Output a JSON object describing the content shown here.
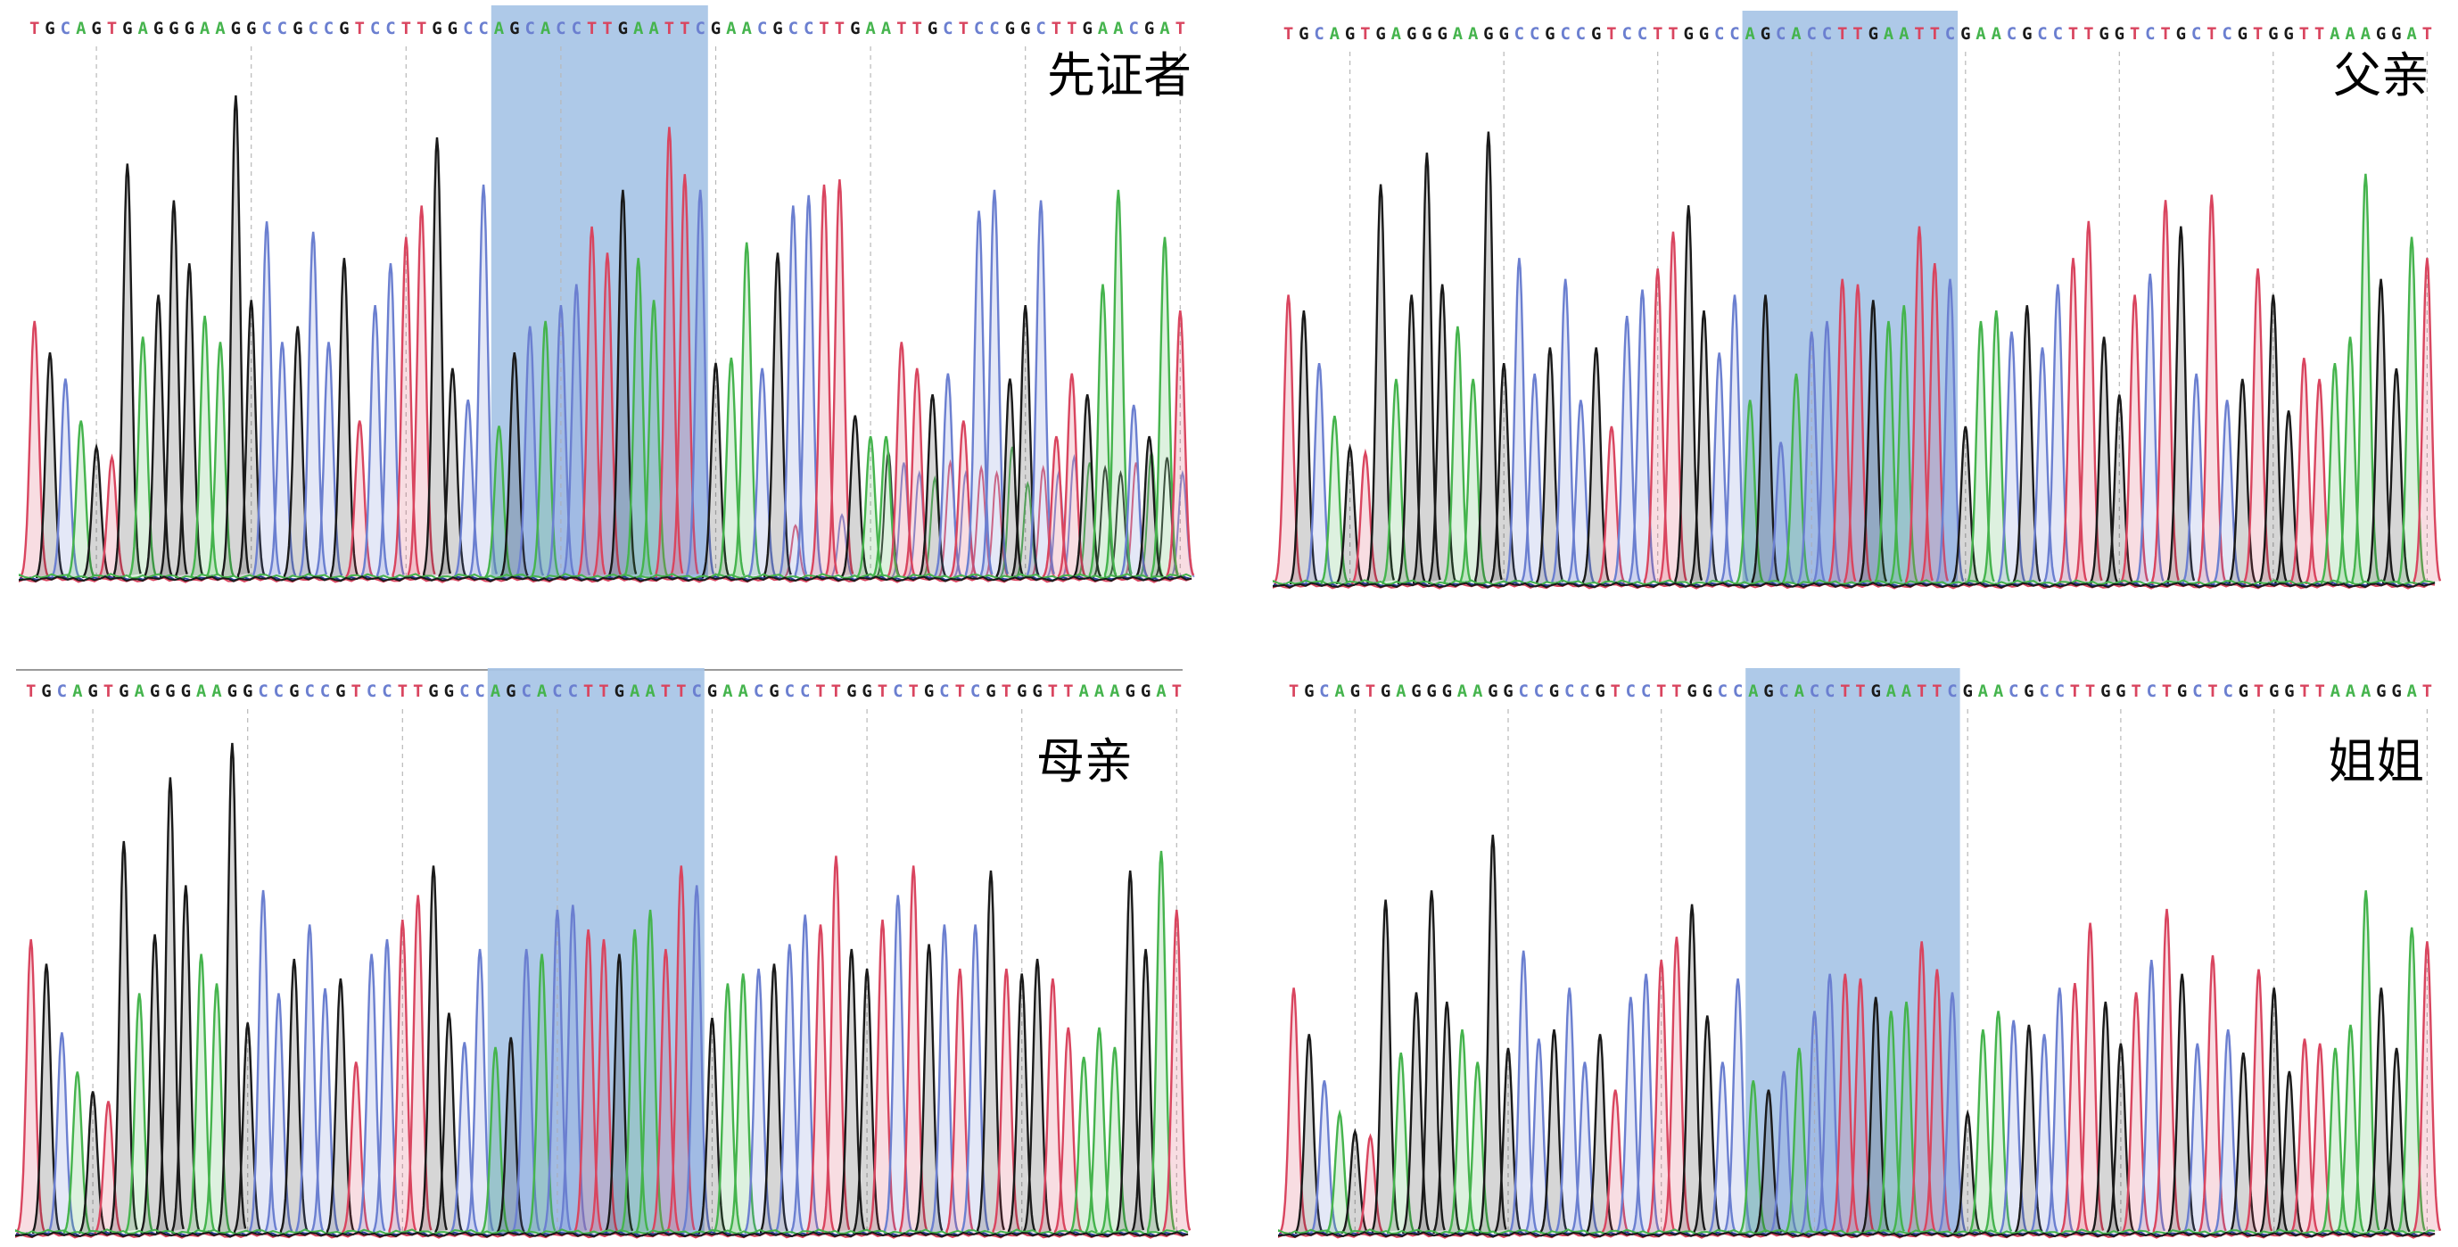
{
  "colors": {
    "A": "#45b44d",
    "C": "#6b7fd0",
    "G": "#1a1a1a",
    "T": "#d9455f",
    "highlight": "#a7c4e6",
    "baseline_blue": "#2c3f9a",
    "gridline": "#b8b8b8",
    "separator": "#9a9a9a"
  },
  "chart_data": [
    {
      "type": "chromatogram",
      "panel": "proband",
      "label": "先证者",
      "sequence": "TGCAGTGAGGGAAGGCCGCCGTCCTTGGCCAGCACCTTGAATTCGAACGCCTTGAATTGCTCCGGCTTGAACGAT",
      "highlight_bases": [
        30,
        43
      ],
      "peak_heights": [
        0.49,
        0.43,
        0.38,
        0.3,
        0.25,
        0.23,
        0.79,
        0.46,
        0.54,
        0.72,
        0.6,
        0.5,
        0.45,
        0.92,
        0.53,
        0.68,
        0.45,
        0.48,
        0.66,
        0.45,
        0.61,
        0.3,
        0.52,
        0.6,
        0.65,
        0.71,
        0.84,
        0.4,
        0.34,
        0.75,
        0.29,
        0.43,
        0.48,
        0.49,
        0.52,
        0.56,
        0.67,
        0.62,
        0.74,
        0.61,
        0.53,
        0.86,
        0.77,
        0.74,
        0.41,
        0.42,
        0.64,
        0.4,
        0.62,
        0.71,
        0.73,
        0.75,
        0.76,
        0.31,
        0.27,
        0.27,
        0.45,
        0.4,
        0.35,
        0.39,
        0.3,
        0.7,
        0.74,
        0.38,
        0.52,
        0.72,
        0.27,
        0.39,
        0.35,
        0.56,
        0.74,
        0.33,
        0.27,
        0.65,
        0.51
      ],
      "secondary_peaks": [
        [
          49,
          0.1
        ],
        [
          52,
          0.12
        ],
        [
          55,
          0.24
        ],
        [
          56,
          0.22
        ],
        [
          57,
          0.2
        ],
        [
          58,
          0.19
        ],
        [
          59,
          0.22
        ],
        [
          60,
          0.2
        ],
        [
          61,
          0.21
        ],
        [
          62,
          0.2
        ],
        [
          63,
          0.25
        ],
        [
          64,
          0.18
        ],
        [
          65,
          0.21
        ],
        [
          66,
          0.2
        ],
        [
          67,
          0.23
        ],
        [
          68,
          0.22
        ],
        [
          69,
          0.21
        ],
        [
          70,
          0.2
        ],
        [
          71,
          0.22
        ],
        [
          72,
          0.24
        ],
        [
          73,
          0.23
        ],
        [
          74,
          0.2
        ]
      ]
    },
    {
      "type": "chromatogram",
      "panel": "father",
      "label": "父亲",
      "sequence": "TGCAGTGAGGGAAGGCCGCCGTCCTTGGCCAGCACCTTGAATTCGAACGCCTTGGTCTGCTCGTGGTTAAAGGAT",
      "highlight_bases": [
        30,
        43
      ],
      "peak_heights": [
        0.55,
        0.52,
        0.42,
        0.32,
        0.26,
        0.25,
        0.76,
        0.39,
        0.55,
        0.82,
        0.57,
        0.49,
        0.39,
        0.86,
        0.42,
        0.62,
        0.4,
        0.45,
        0.58,
        0.35,
        0.45,
        0.3,
        0.51,
        0.56,
        0.6,
        0.67,
        0.72,
        0.52,
        0.44,
        0.55,
        0.35,
        0.55,
        0.27,
        0.4,
        0.48,
        0.5,
        0.58,
        0.57,
        0.54,
        0.5,
        0.53,
        0.68,
        0.61,
        0.58,
        0.3,
        0.5,
        0.52,
        0.48,
        0.53,
        0.45,
        0.57,
        0.62,
        0.69,
        0.47,
        0.36,
        0.55,
        0.59,
        0.73,
        0.68,
        0.4,
        0.74,
        0.35,
        0.39,
        0.6,
        0.55,
        0.33,
        0.43,
        0.39,
        0.42,
        0.47,
        0.78,
        0.58,
        0.41,
        0.66,
        0.62
      ],
      "secondary_peaks": []
    },
    {
      "type": "chromatogram",
      "panel": "mother",
      "label": "母亲",
      "sequence": "TGCAGTGAGGGAAGGCCGCCGTCCTTGGCCAGCACCTTGAATTCGAACGCCTTGGTCTGCTCGTGGTTAAAGGAT",
      "highlight_bases": [
        30,
        43
      ],
      "peak_heights": [
        0.6,
        0.55,
        0.41,
        0.33,
        0.29,
        0.27,
        0.8,
        0.49,
        0.61,
        0.93,
        0.71,
        0.57,
        0.51,
        1.0,
        0.43,
        0.7,
        0.49,
        0.56,
        0.63,
        0.5,
        0.52,
        0.35,
        0.57,
        0.6,
        0.64,
        0.69,
        0.75,
        0.45,
        0.39,
        0.58,
        0.38,
        0.4,
        0.58,
        0.57,
        0.66,
        0.67,
        0.62,
        0.6,
        0.57,
        0.62,
        0.66,
        0.58,
        0.75,
        0.71,
        0.44,
        0.51,
        0.53,
        0.54,
        0.55,
        0.59,
        0.65,
        0.63,
        0.77,
        0.58,
        0.54,
        0.64,
        0.69,
        0.75,
        0.59,
        0.63,
        0.54,
        0.63,
        0.74,
        0.54,
        0.53,
        0.56,
        0.52,
        0.42,
        0.36,
        0.42,
        0.38,
        0.74,
        0.58,
        0.78,
        0.66
      ],
      "secondary_peaks": []
    },
    {
      "type": "chromatogram",
      "panel": "sister",
      "label": "姐姐",
      "sequence": "TGCAGTGAGGGAAGGCCGCCGTCCTTGGCCAGCACCTTGAATTCGAACGCCTTGGTCTGCTCGTGGTTAAAGGAT",
      "highlight_bases": [
        30,
        43
      ],
      "peak_heights": [
        0.53,
        0.43,
        0.33,
        0.26,
        0.22,
        0.21,
        0.72,
        0.39,
        0.52,
        0.74,
        0.5,
        0.44,
        0.37,
        0.86,
        0.4,
        0.61,
        0.42,
        0.44,
        0.53,
        0.37,
        0.43,
        0.31,
        0.51,
        0.56,
        0.59,
        0.64,
        0.71,
        0.47,
        0.37,
        0.55,
        0.33,
        0.31,
        0.35,
        0.4,
        0.48,
        0.56,
        0.56,
        0.55,
        0.51,
        0.48,
        0.5,
        0.63,
        0.57,
        0.52,
        0.26,
        0.44,
        0.48,
        0.46,
        0.45,
        0.43,
        0.53,
        0.54,
        0.67,
        0.5,
        0.41,
        0.52,
        0.59,
        0.7,
        0.56,
        0.41,
        0.6,
        0.44,
        0.39,
        0.57,
        0.53,
        0.35,
        0.42,
        0.41,
        0.4,
        0.45,
        0.74,
        0.53,
        0.4,
        0.66,
        0.63
      ],
      "secondary_peaks": []
    }
  ]
}
